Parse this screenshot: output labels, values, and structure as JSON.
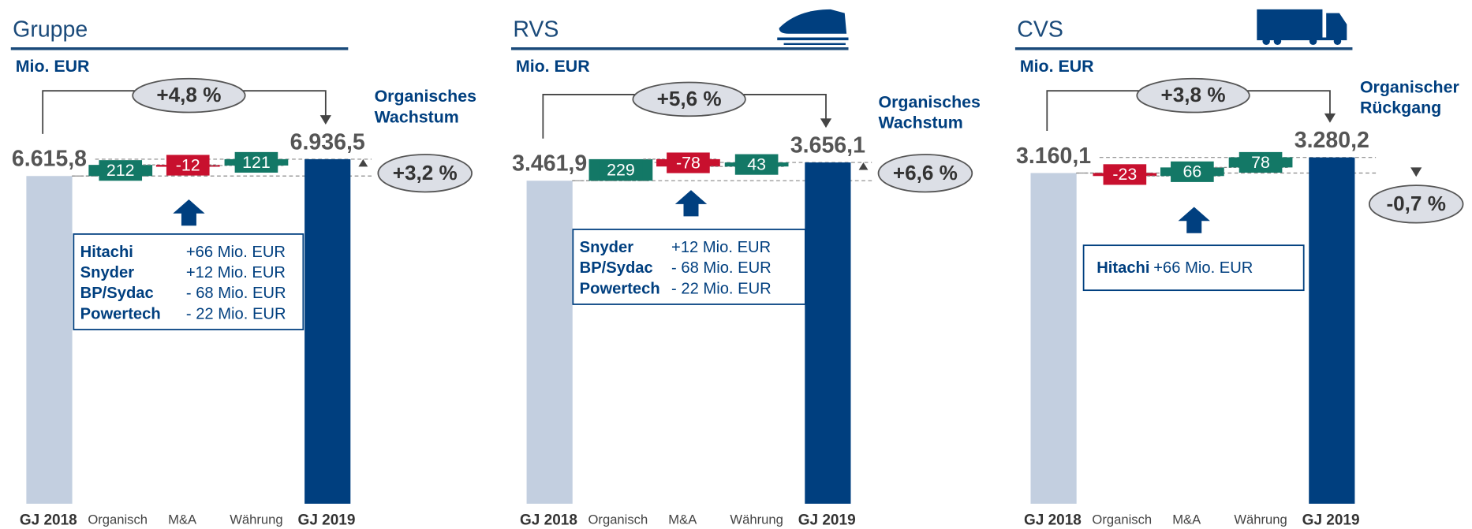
{
  "chart_data": [
    {
      "type": "waterfall",
      "title": "Gruppe",
      "unit": "Mio. EUR",
      "categories": [
        "GJ 2018",
        "Organisch",
        "M&A",
        "Währung",
        "GJ 2019"
      ],
      "values": [
        6615.8,
        212,
        -12,
        121,
        6936.5
      ],
      "value_labels": [
        "6.615,8",
        "212",
        "-12",
        "121",
        "6.936,5"
      ],
      "total_change": "+4,8 %",
      "organic_label": [
        "Organisches",
        "Wachstum"
      ],
      "organic_change": "+3,2 %",
      "details": [
        {
          "name": "Hitachi",
          "value": "+66 Mio. EUR"
        },
        {
          "name": "Snyder",
          "value": "+12 Mio. EUR"
        },
        {
          "name": "BP/Sydac",
          "value": "- 68 Mio. EUR"
        },
        {
          "name": "Powertech",
          "value": "- 22 Mio. EUR"
        }
      ],
      "colors": {
        "start": "#c3cfe0",
        "end": "#003f7f",
        "increase": "#137866",
        "decrease": "#c8102e"
      }
    },
    {
      "type": "waterfall",
      "title": "RVS",
      "unit": "Mio. EUR",
      "categories": [
        "GJ 2018",
        "Organisch",
        "M&A",
        "Währung",
        "GJ 2019"
      ],
      "values": [
        3461.9,
        229,
        -78,
        43,
        3656.1
      ],
      "value_labels": [
        "3.461,9",
        "229",
        "-78",
        "43",
        "3.656,1"
      ],
      "total_change": "+5,6 %",
      "organic_label": [
        "Organisches",
        "Wachstum"
      ],
      "organic_change": "+6,6 %",
      "details": [
        {
          "name": "Snyder",
          "value": "+12 Mio. EUR"
        },
        {
          "name": "BP/Sydac",
          "value": "- 68 Mio. EUR"
        },
        {
          "name": "Powertech",
          "value": "- 22 Mio. EUR"
        }
      ],
      "colors": {
        "start": "#c3cfe0",
        "end": "#003f7f",
        "increase": "#137866",
        "decrease": "#c8102e"
      }
    },
    {
      "type": "waterfall",
      "title": "CVS",
      "unit": "Mio. EUR",
      "categories": [
        "GJ 2018",
        "Organisch",
        "M&A",
        "Währung",
        "GJ 2019"
      ],
      "values": [
        3160.1,
        -23,
        66,
        78,
        3280.2
      ],
      "value_labels": [
        "3.160,1",
        "-23",
        "66",
        "78",
        "3.280,2"
      ],
      "total_change": "+3,8 %",
      "organic_label": [
        "Organischer",
        "Rückgang"
      ],
      "organic_change": "-0,7 %",
      "details": [
        {
          "name": "Hitachi",
          "value": "+66 Mio. EUR"
        }
      ],
      "colors": {
        "start": "#c3cfe0",
        "end": "#003f7f",
        "increase": "#137866",
        "decrease": "#c8102e"
      }
    }
  ]
}
